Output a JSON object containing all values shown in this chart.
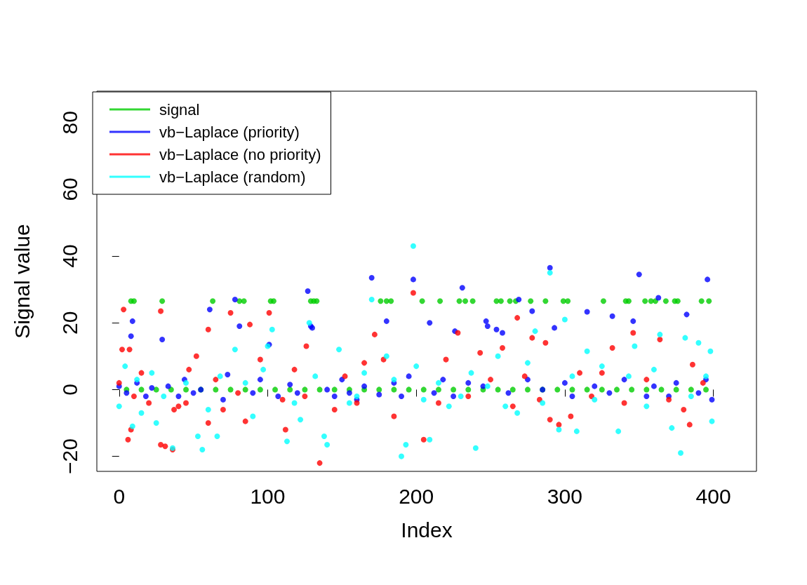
{
  "chart_data": {
    "type": "scatter",
    "xlabel": "Index",
    "ylabel": "Signal value",
    "xlim": [
      -15,
      429
    ],
    "ylim": [
      -24.5,
      89.4
    ],
    "xticks": [
      0,
      100,
      200,
      300,
      400
    ],
    "yticks": [
      -20,
      0,
      20,
      40,
      60,
      80
    ],
    "grid": false,
    "legend": "top left",
    "marker": "circle",
    "series": [
      {
        "name": "signal",
        "color": "#00cd00",
        "x": [
          5,
          15,
          25,
          35,
          45,
          55,
          65,
          75,
          85,
          95,
          105,
          115,
          125,
          135,
          145,
          155,
          165,
          175,
          185,
          195,
          205,
          215,
          225,
          235,
          245,
          255,
          265,
          275,
          285,
          295,
          305,
          315,
          325,
          335,
          345,
          355,
          365,
          375,
          385,
          395,
          8,
          10,
          29,
          63,
          81,
          84,
          102,
          104,
          129,
          131,
          133,
          176,
          180,
          183,
          204,
          216,
          229,
          233,
          238,
          254,
          257,
          263,
          267,
          277,
          287,
          299,
          302,
          326,
          341,
          343,
          354,
          358,
          361,
          368,
          374,
          376,
          392,
          397
        ],
        "values": [
          0,
          0,
          0,
          0,
          0,
          0,
          0,
          0,
          0,
          0,
          0,
          0,
          0,
          0,
          0,
          0,
          0,
          0,
          0,
          0,
          0,
          0,
          0,
          0,
          0,
          0,
          0,
          0,
          0,
          0,
          0,
          0,
          0,
          0,
          0,
          0,
          0,
          0,
          0,
          0,
          26.5,
          26.5,
          26.5,
          26.5,
          26.5,
          26.5,
          26.5,
          26.5,
          26.5,
          26.5,
          26.5,
          26.5,
          26.5,
          26.5,
          26.5,
          26.5,
          26.5,
          26.5,
          26.5,
          26.5,
          26.5,
          26.5,
          26.5,
          26.5,
          26.5,
          26.5,
          26.5,
          26.5,
          26.5,
          26.5,
          26.5,
          26.5,
          26.5,
          26.5,
          26.5,
          26.5,
          26.5,
          26.5
        ]
      },
      {
        "name": "vb−Laplace (priority)",
        "color": "#0000ff",
        "x": [
          9,
          8,
          29,
          61,
          78,
          81,
          101,
          127,
          129,
          130,
          170,
          180,
          198,
          209,
          226,
          231,
          247,
          248,
          254,
          258,
          269,
          278,
          290,
          293,
          315,
          332,
          346,
          350,
          363,
          382,
          396,
          0,
          5,
          12,
          18,
          22,
          33,
          40,
          44,
          50,
          55,
          70,
          73,
          90,
          95,
          107,
          115,
          120,
          140,
          145,
          150,
          155,
          160,
          165,
          175,
          185,
          190,
          195,
          212,
          218,
          225,
          235,
          245,
          262,
          275,
          285,
          300,
          305,
          320,
          330,
          340,
          355,
          360,
          370,
          375,
          390,
          395,
          399
        ],
        "values": [
          20.5,
          16,
          15,
          24,
          27,
          19,
          13.5,
          29.5,
          19,
          18.5,
          33.5,
          20.5,
          33,
          20,
          17.5,
          30.5,
          20.5,
          19,
          18,
          17,
          27,
          23.5,
          36.5,
          18.5,
          23.3,
          22,
          20.5,
          34.5,
          27.5,
          22.5,
          33,
          1,
          -1,
          2,
          -2,
          0.5,
          1,
          -2,
          3,
          -1,
          0,
          -3,
          4.5,
          -1,
          3,
          -2,
          1.5,
          -1,
          0,
          -2,
          3,
          -1,
          -3,
          1,
          -1.5,
          2,
          -2,
          4,
          -1,
          3,
          -2,
          2,
          1,
          -1,
          3,
          0,
          2,
          -2,
          1,
          -1,
          3,
          -2,
          1,
          -2,
          2,
          -1,
          3,
          -3
        ]
      },
      {
        "name": "vb−Laplace (no priority)",
        "color": "#ff0000",
        "x": [
          3,
          2,
          7,
          6,
          8,
          28,
          28,
          31,
          36,
          37,
          45,
          60,
          60,
          75,
          85,
          88,
          101,
          112,
          126,
          135,
          172,
          198,
          205,
          228,
          243,
          258,
          268,
          278,
          287,
          290,
          296,
          304,
          332,
          346,
          364,
          380,
          384,
          386,
          0,
          10,
          15,
          20,
          40,
          47,
          52,
          65,
          70,
          80,
          95,
          110,
          118,
          125,
          145,
          152,
          160,
          165,
          178,
          185,
          215,
          220,
          235,
          250,
          265,
          273,
          283,
          310,
          318,
          325,
          340,
          355,
          370,
          393
        ],
        "values": [
          24,
          12,
          12,
          -15,
          -12,
          23.5,
          -16.5,
          -17,
          -18,
          -6,
          -4,
          18,
          -10,
          23,
          -9.5,
          19.5,
          23,
          -12,
          13,
          -22,
          16.5,
          29,
          -15,
          17,
          11,
          12.5,
          21.5,
          15.5,
          14,
          -9,
          -10.5,
          -8,
          12.5,
          17,
          15,
          -6,
          -10.5,
          7.5,
          2,
          -2,
          5,
          -4,
          -5,
          6,
          10,
          3,
          -6,
          -1,
          9,
          -3,
          6,
          -2,
          -6,
          4,
          -4,
          8,
          9,
          -8,
          -4,
          9,
          -2,
          3,
          -5,
          4,
          -3,
          5,
          -2,
          5,
          -4,
          3,
          -3,
          2
        ]
      },
      {
        "name": "vb−Laplace (random)",
        "color": "#00ffff",
        "x": [
          4,
          9,
          25,
          36,
          56,
          53,
          66,
          78,
          100,
          103,
          113,
          128,
          138,
          140,
          148,
          170,
          190,
          193,
          198,
          209,
          240,
          255,
          268,
          280,
          290,
          296,
          300,
          308,
          315,
          336,
          347,
          364,
          372,
          378,
          381,
          390,
          398,
          399,
          0,
          12,
          15,
          22,
          30,
          45,
          60,
          68,
          85,
          90,
          97,
          118,
          122,
          132,
          155,
          160,
          165,
          180,
          185,
          200,
          205,
          215,
          222,
          230,
          237,
          248,
          260,
          275,
          285,
          305,
          320,
          325,
          343,
          355,
          360,
          385,
          395
        ],
        "values": [
          7,
          -11,
          -10,
          -17.5,
          -18,
          -14,
          -14,
          12,
          13,
          18,
          -15.5,
          20,
          -14,
          -16.5,
          12,
          27,
          -20,
          -16.5,
          43,
          -15,
          -17.5,
          10,
          -7,
          17.5,
          35,
          -12,
          21,
          -12.5,
          11.5,
          -12.5,
          13,
          16.5,
          -11.5,
          -19,
          15.5,
          14,
          11.5,
          -9.5,
          -5,
          3,
          -7,
          5,
          -2,
          2,
          -6,
          4,
          2,
          -8,
          6,
          -4,
          -9,
          4,
          -4,
          -2,
          5,
          10,
          3,
          7,
          -3,
          2,
          -5,
          -2,
          5,
          1,
          -5,
          8,
          -4,
          4,
          -3,
          7,
          4,
          -5,
          6,
          -2,
          4
        ]
      }
    ]
  }
}
